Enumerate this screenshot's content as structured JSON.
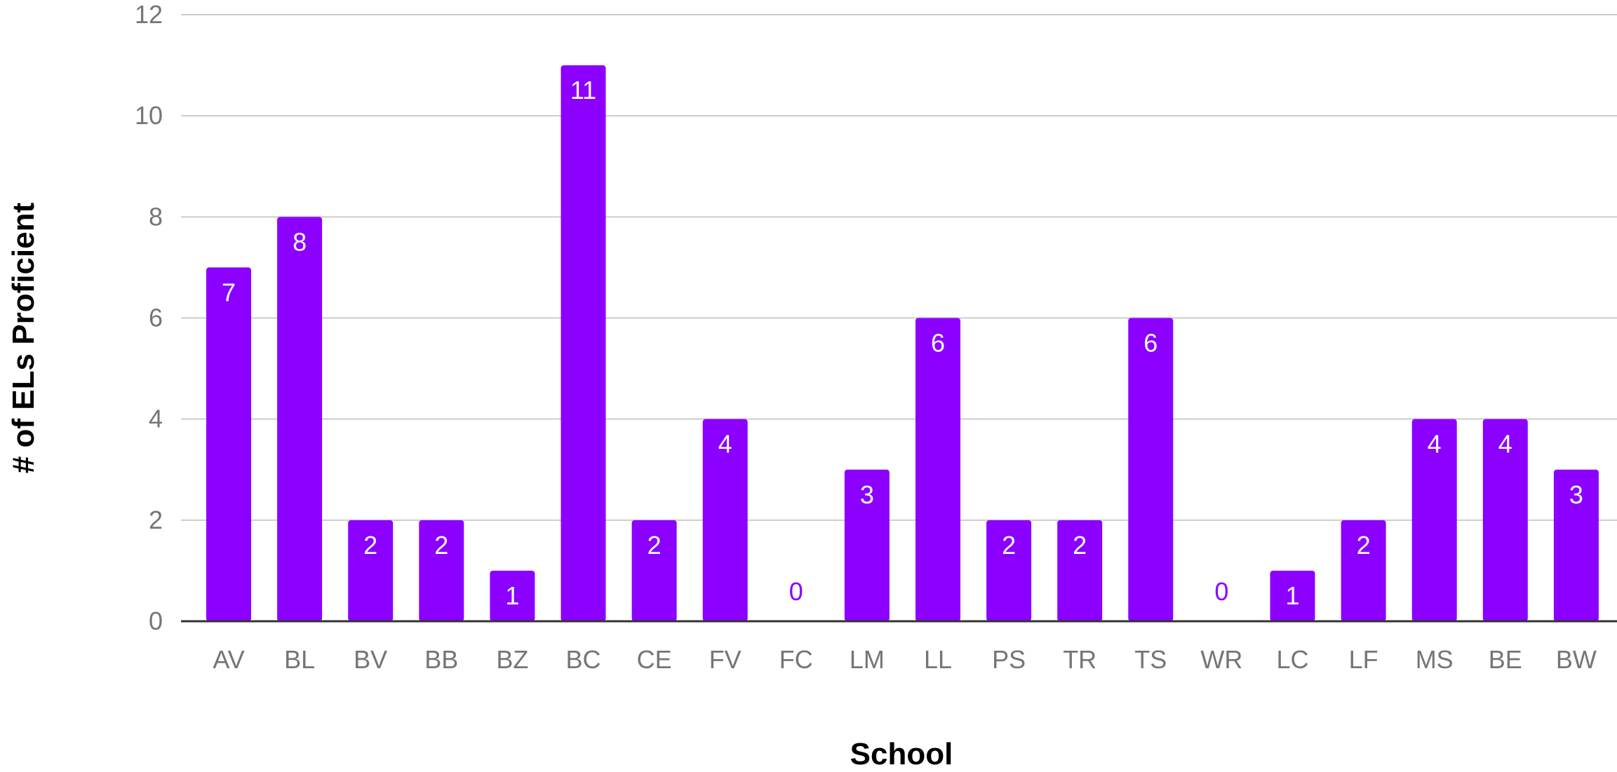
{
  "chart_data": {
    "type": "bar",
    "title": "",
    "xlabel": "School",
    "ylabel": "# of ELs Proficient",
    "ylim": [
      0,
      12
    ],
    "yticks": [
      0,
      2,
      4,
      6,
      8,
      10,
      12
    ],
    "grid": true,
    "legend": "none",
    "categories": [
      "AV",
      "BL",
      "BV",
      "BB",
      "BZ",
      "BC",
      "CE",
      "FV",
      "FC",
      "LM",
      "LL",
      "PS",
      "TR",
      "TS",
      "WR",
      "LC",
      "LF",
      "MS",
      "BE",
      "BW"
    ],
    "values": [
      7,
      8,
      2,
      2,
      1,
      11,
      2,
      4,
      0,
      3,
      6,
      2,
      2,
      6,
      0,
      1,
      2,
      4,
      4,
      3
    ],
    "data_labels": true
  },
  "colors": {
    "bar": "#8c00ff",
    "bar_label_inside": "#ffffff",
    "bar_label_outside": "#8c00ff",
    "grid": "#cccccc",
    "axis": "#333333",
    "tick_text": "#757575",
    "axis_title": "#000000"
  }
}
